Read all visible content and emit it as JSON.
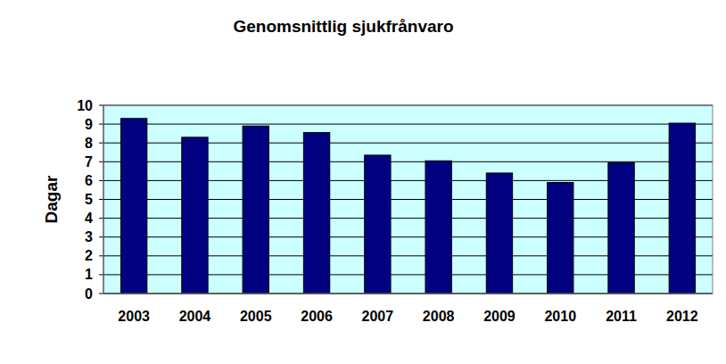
{
  "chart_data": {
    "type": "bar",
    "title": "Genomsnittlig sjukfrånvaro",
    "y_label": "Dagar",
    "categories": [
      "2003",
      "2004",
      "2005",
      "2006",
      "2007",
      "2008",
      "2009",
      "2010",
      "2011",
      "2012"
    ],
    "values": [
      9.3,
      8.3,
      8.9,
      8.55,
      7.35,
      7.05,
      6.4,
      5.9,
      6.95,
      9.05
    ],
    "color": "#000080",
    "ylim": [
      0,
      10
    ],
    "yticks": [
      0,
      1,
      2,
      3,
      4,
      5,
      6,
      7,
      8,
      9,
      10
    ],
    "grid": true
  }
}
